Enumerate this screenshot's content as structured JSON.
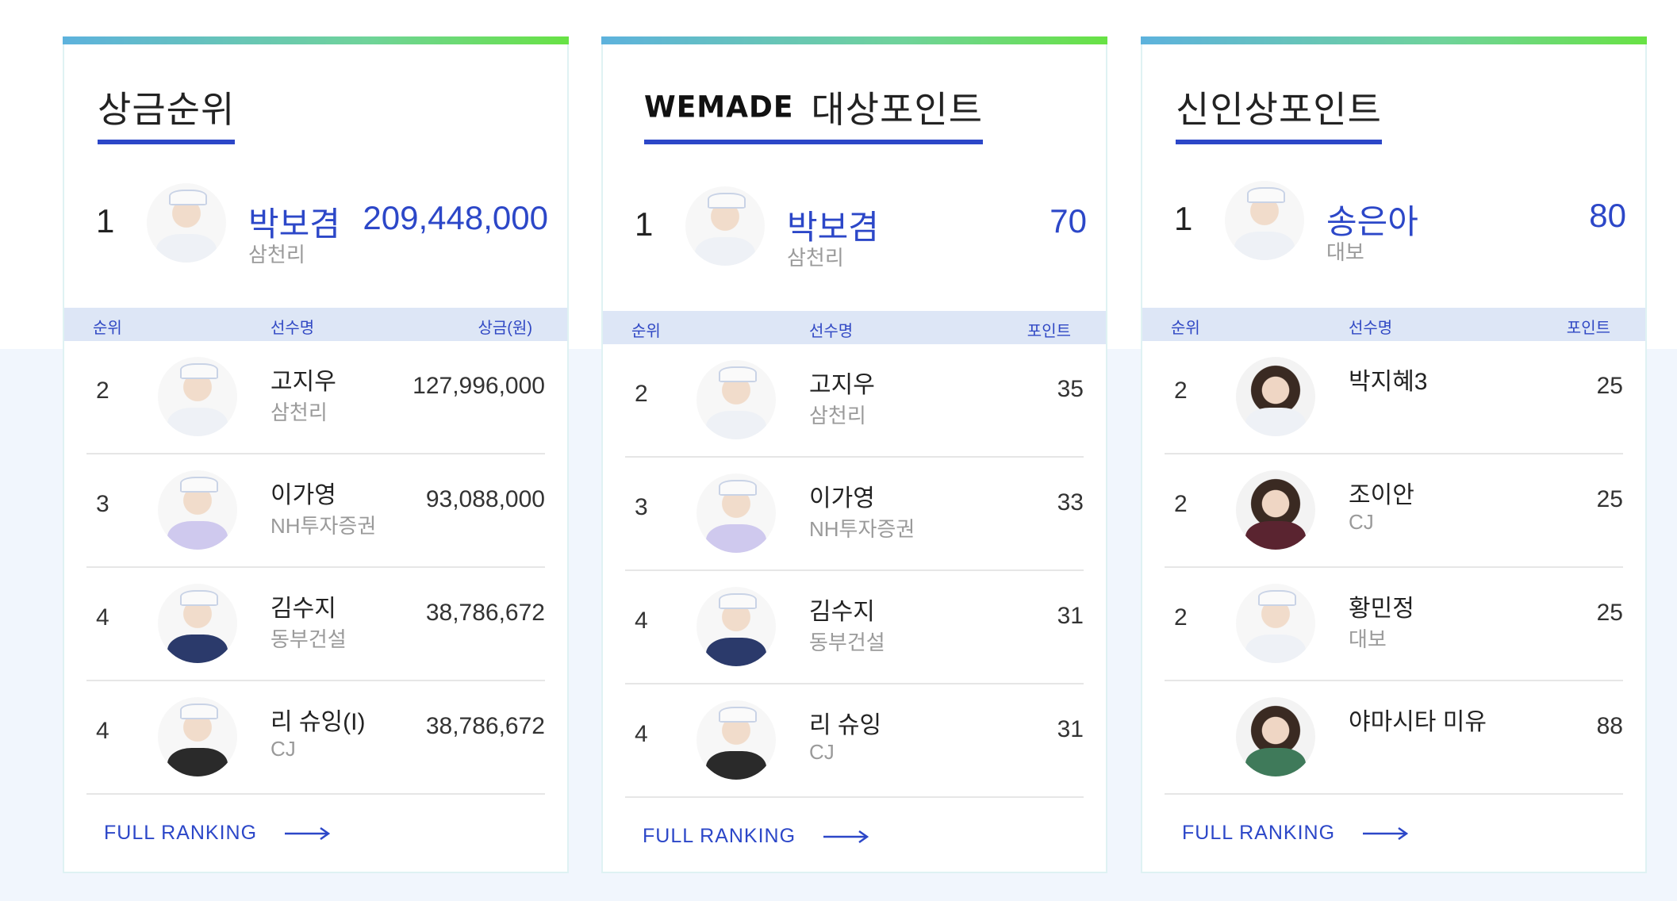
{
  "colors": {
    "accent": "#2c47c8",
    "header_bg": "#dde6f6",
    "bar_start": "#5db2dd",
    "bar_end": "#68e244"
  },
  "cards": [
    {
      "title": "상금순위",
      "sponsor_logo": "",
      "leader": {
        "rank": "1",
        "name": "박보겸",
        "team": "삼천리",
        "value": "209,448,000"
      },
      "headers": {
        "rank": "순위",
        "name": "선수명",
        "value": "상금(원)"
      },
      "rows": [
        {
          "rank": "2",
          "name": "고지우",
          "team": "삼천리",
          "value": "127,996,000"
        },
        {
          "rank": "3",
          "name": "이가영",
          "team": "NH투자증권",
          "value": "93,088,000"
        },
        {
          "rank": "4",
          "name": "김수지",
          "team": "동부건설",
          "value": "38,786,672"
        },
        {
          "rank": "4",
          "name": "리 슈잉(I)",
          "team": "CJ",
          "value": "38,786,672"
        }
      ],
      "full_ranking": "FULL RANKING"
    },
    {
      "title": "대상포인트",
      "sponsor_logo": "WEMADE",
      "leader": {
        "rank": "1",
        "name": "박보겸",
        "team": "삼천리",
        "value": "70"
      },
      "headers": {
        "rank": "순위",
        "name": "선수명",
        "value": "포인트"
      },
      "rows": [
        {
          "rank": "2",
          "name": "고지우",
          "team": "삼천리",
          "value": "35"
        },
        {
          "rank": "3",
          "name": "이가영",
          "team": "NH투자증권",
          "value": "33"
        },
        {
          "rank": "4",
          "name": "김수지",
          "team": "동부건설",
          "value": "31"
        },
        {
          "rank": "4",
          "name": "리 슈잉",
          "team": "CJ",
          "value": "31"
        }
      ],
      "full_ranking": "FULL RANKING"
    },
    {
      "title": "신인상포인트",
      "sponsor_logo": "",
      "leader": {
        "rank": "1",
        "name": "송은아",
        "team": "대보",
        "value": "80"
      },
      "headers": {
        "rank": "순위",
        "name": "선수명",
        "value": "포인트"
      },
      "rows": [
        {
          "rank": "2",
          "name": "박지혜3",
          "team": "",
          "value": "25"
        },
        {
          "rank": "2",
          "name": "조이안",
          "team": "CJ",
          "value": "25"
        },
        {
          "rank": "2",
          "name": "황민정",
          "team": "대보",
          "value": "25"
        },
        {
          "rank": "",
          "name": "야마시타 미유",
          "team": "",
          "value": "88"
        }
      ],
      "full_ranking": "FULL RANKING"
    }
  ]
}
